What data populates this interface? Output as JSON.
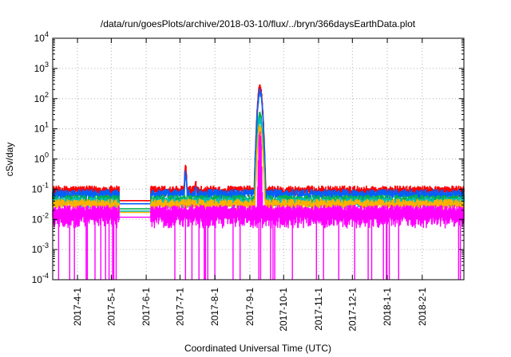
{
  "chart_data": {
    "type": "line",
    "title": "/data/run/goesPlots/archive/2018-03-10/flux/../bryn/366daysEarthData.plot",
    "xlabel": "Coordinated Universal Time (UTC)",
    "ylabel": "cSv/day",
    "y_scale": "log",
    "ylim": [
      0.0001,
      10000
    ],
    "xlim": [
      "2017-03-10",
      "2018-03-10"
    ],
    "grid": true,
    "y_ticks": [
      {
        "value": 0.0001,
        "base": "10",
        "exp": "-4"
      },
      {
        "value": 0.001,
        "base": "10",
        "exp": "-3"
      },
      {
        "value": 0.01,
        "base": "10",
        "exp": "-2"
      },
      {
        "value": 0.1,
        "base": "10",
        "exp": "-1"
      },
      {
        "value": 1,
        "base": "10",
        "exp": "0"
      },
      {
        "value": 10,
        "base": "10",
        "exp": "1"
      },
      {
        "value": 100,
        "base": "10",
        "exp": "2"
      },
      {
        "value": 1000,
        "base": "10",
        "exp": "3"
      },
      {
        "value": 10000,
        "base": "10",
        "exp": "4"
      }
    ],
    "x_ticks": [
      {
        "label": "2017-4-1",
        "date": "2017-04-01"
      },
      {
        "label": "2017-5-1",
        "date": "2017-05-01"
      },
      {
        "label": "2017-6-1",
        "date": "2017-06-01"
      },
      {
        "label": "2017-7-1",
        "date": "2017-07-01"
      },
      {
        "label": "2017-8-1",
        "date": "2017-08-01"
      },
      {
        "label": "2017-9-1",
        "date": "2017-09-01"
      },
      {
        "label": "2017-10-1",
        "date": "2017-10-01"
      },
      {
        "label": "2017-11-1",
        "date": "2017-11-01"
      },
      {
        "label": "2017-12-1",
        "date": "2017-12-01"
      },
      {
        "label": "2018-1-1",
        "date": "2018-01-01"
      },
      {
        "label": "2018-2-1",
        "date": "2018-02-01"
      }
    ],
    "data_gap": [
      "2017-05-08",
      "2017-06-05"
    ],
    "series": [
      {
        "color": "#ff0000",
        "baseline": 0.11,
        "points": [
          [
            "2017-07-06",
            0.7
          ],
          [
            "2017-07-15",
            0.2
          ],
          [
            "2017-09-07",
            1.0
          ],
          [
            "2017-09-10",
            320
          ],
          [
            "2017-09-14",
            0.2
          ]
        ]
      },
      {
        "color": "#0060ff",
        "baseline": 0.085,
        "points": [
          [
            "2017-07-06",
            0.45
          ],
          [
            "2017-07-15",
            0.15
          ],
          [
            "2017-09-07",
            0.6
          ],
          [
            "2017-09-10",
            220
          ],
          [
            "2017-09-14",
            0.15
          ]
        ]
      },
      {
        "color": "#00b050",
        "baseline": 0.055,
        "points": [
          [
            "2017-09-10",
            40
          ]
        ]
      },
      {
        "color": "#00c0c0",
        "baseline": 0.045,
        "points": [
          [
            "2017-09-10",
            25
          ]
        ]
      },
      {
        "color": "#ffb000",
        "baseline": 0.04,
        "points": [
          [
            "2017-09-10",
            15
          ]
        ]
      },
      {
        "color": "#ff00ff",
        "baseline": 0.025,
        "points": [
          [
            "2017-09-10",
            9
          ]
        ]
      }
    ]
  }
}
